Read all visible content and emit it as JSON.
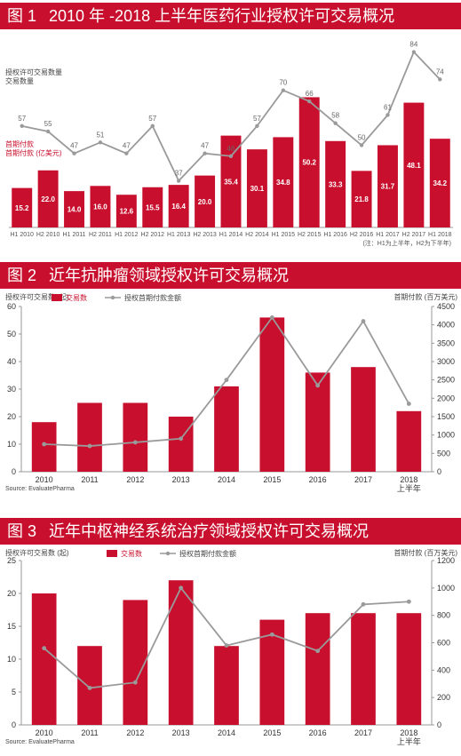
{
  "chart_data": [
    {
      "type": "bar",
      "number": "图 1",
      "title": "2010 年 -2018 上半年医药行业授权许可交易概况",
      "categories": [
        "H1 2010",
        "H2 2010",
        "H1 2011",
        "H2 2011",
        "H1 2012",
        "H2 2012",
        "H1 2013",
        "H2 2013",
        "H1 2014",
        "H2 2014",
        "H1 2015",
        "H2 2015",
        "H1 2016",
        "H2 2016",
        "H1 2017",
        "H2 2017",
        "H1 2018"
      ],
      "series": [
        {
          "name": "首期付款 (亿美元)",
          "values": [
            15.2,
            22.0,
            14.0,
            16.0,
            12.6,
            15.5,
            16.4,
            20.0,
            35.4,
            30.1,
            34.8,
            50.2,
            33.3,
            21.8,
            31.7,
            48.1,
            34.2
          ],
          "color": "#c8102e"
        },
        {
          "name": "交易数量",
          "values": [
            57,
            55,
            47,
            51,
            47,
            57,
            37,
            47,
            46,
            57,
            70,
            66,
            58,
            50,
            61,
            84,
            74
          ],
          "color": "#9a9a9a"
        }
      ],
      "legend_line": "授权许可交易数量",
      "legend_bar": "首期付款",
      "footnote": "(注：H1为上半年，H2为下半年)",
      "bar_ylim": [
        0,
        62
      ],
      "line_ylim": [
        20,
        90
      ]
    },
    {
      "type": "bar",
      "number": "图 2",
      "title": "近年抗肿瘤领域授权许可交易概况",
      "categories": [
        "2010",
        "2011",
        "2012",
        "2013",
        "2014",
        "2015",
        "2016",
        "2017",
        "2018"
      ],
      "last_sub": "上半年",
      "ylabel_left": "授权许可交易数 (起)",
      "ylabel_right": "首期付款 (百万美元)",
      "series": [
        {
          "name": "交易数",
          "values": [
            18,
            25,
            25,
            20,
            31,
            56,
            36,
            38,
            22
          ],
          "color": "#c8102e"
        },
        {
          "name": "授权首期付款金额",
          "values": [
            750,
            700,
            800,
            900,
            2500,
            4200,
            2350,
            4100,
            1850
          ],
          "color": "#9a9a9a"
        }
      ],
      "ylim_left": [
        0,
        60
      ],
      "yticks_left": [
        0,
        10,
        20,
        30,
        40,
        50,
        60
      ],
      "ylim_right": [
        0,
        4500
      ],
      "yticks_right": [
        0,
        500,
        1000,
        1500,
        2000,
        2500,
        3000,
        3500,
        4000,
        4500
      ],
      "source": "Source: EvaluatePharma"
    },
    {
      "type": "bar",
      "number": "图 3",
      "title": "近年中枢神经系统治疗领域授权许可交易概况",
      "categories": [
        "2010",
        "2011",
        "2012",
        "2013",
        "2014",
        "2015",
        "2016",
        "2017",
        "2018"
      ],
      "last_sub": "上半年",
      "ylabel_left": "授权许可交易数 (起)",
      "ylabel_right": "首期付款 (百万美元)",
      "series": [
        {
          "name": "交易数",
          "values": [
            20,
            12,
            19,
            22,
            12,
            16,
            17,
            17,
            17
          ],
          "color": "#c8102e"
        },
        {
          "name": "授权首期付款金额",
          "values": [
            560,
            270,
            310,
            1000,
            580,
            660,
            540,
            880,
            900
          ],
          "color": "#9a9a9a"
        }
      ],
      "ylim_left": [
        0,
        25
      ],
      "yticks_left": [
        0,
        5,
        10,
        15,
        20,
        25
      ],
      "ylim_right": [
        0,
        1200
      ],
      "yticks_right": [
        0,
        200,
        400,
        600,
        800,
        1000,
        1200
      ],
      "source": "Source: EvaluatePharma"
    }
  ]
}
